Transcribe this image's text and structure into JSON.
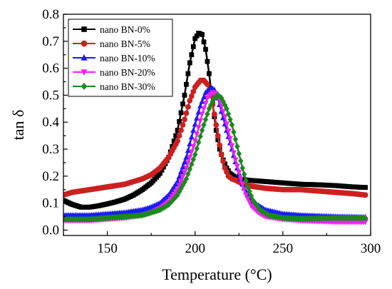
{
  "chart_data": {
    "type": "line",
    "xlabel": "Temperature (°C)",
    "ylabel": "tan δ",
    "xlim": [
      125,
      300
    ],
    "ylim": [
      -0.02,
      0.8
    ],
    "x_ticks": [
      150,
      200,
      250,
      300
    ],
    "x_tick_labels": [
      "150",
      "200",
      "250",
      "300"
    ],
    "y_ticks": [
      0.0,
      0.1,
      0.2,
      0.3,
      0.4,
      0.5,
      0.6,
      0.7,
      0.8
    ],
    "y_tick_labels": [
      "0.0",
      "0.1",
      "0.2",
      "0.3",
      "0.4",
      "0.5",
      "0.6",
      "0.7",
      "0.8"
    ],
    "legend_position": "top-left",
    "series": [
      {
        "name": "nano BN-0%",
        "color": "#000000",
        "marker": "square",
        "points": [
          [
            125,
            0.11
          ],
          [
            130,
            0.095
          ],
          [
            135,
            0.085
          ],
          [
            140,
            0.085
          ],
          [
            145,
            0.09
          ],
          [
            150,
            0.097
          ],
          [
            155,
            0.105
          ],
          [
            160,
            0.115
          ],
          [
            165,
            0.13
          ],
          [
            170,
            0.15
          ],
          [
            175,
            0.175
          ],
          [
            180,
            0.21
          ],
          [
            185,
            0.27
          ],
          [
            190,
            0.37
          ],
          [
            194,
            0.5
          ],
          [
            197,
            0.62
          ],
          [
            200,
            0.71
          ],
          [
            202,
            0.73
          ],
          [
            204,
            0.725
          ],
          [
            206,
            0.67
          ],
          [
            208,
            0.58
          ],
          [
            210,
            0.47
          ],
          [
            212,
            0.37
          ],
          [
            214,
            0.3
          ],
          [
            216,
            0.26
          ],
          [
            218,
            0.23
          ],
          [
            220,
            0.21
          ],
          [
            222,
            0.2
          ],
          [
            225,
            0.19
          ],
          [
            230,
            0.185
          ],
          [
            240,
            0.18
          ],
          [
            250,
            0.175
          ],
          [
            260,
            0.17
          ],
          [
            270,
            0.168
          ],
          [
            280,
            0.165
          ],
          [
            290,
            0.16
          ],
          [
            297,
            0.158
          ]
        ]
      },
      {
        "name": "nano BN-5%",
        "color": "#cc2020",
        "marker": "circle",
        "points": [
          [
            125,
            0.13
          ],
          [
            130,
            0.14
          ],
          [
            140,
            0.15
          ],
          [
            150,
            0.16
          ],
          [
            160,
            0.17
          ],
          [
            170,
            0.19
          ],
          [
            175,
            0.205
          ],
          [
            180,
            0.23
          ],
          [
            185,
            0.27
          ],
          [
            190,
            0.33
          ],
          [
            194,
            0.41
          ],
          [
            197,
            0.48
          ],
          [
            200,
            0.53
          ],
          [
            203,
            0.555
          ],
          [
            205,
            0.555
          ],
          [
            207,
            0.54
          ],
          [
            209,
            0.5
          ],
          [
            211,
            0.43
          ],
          [
            213,
            0.35
          ],
          [
            215,
            0.28
          ],
          [
            217,
            0.23
          ],
          [
            219,
            0.2
          ],
          [
            221,
            0.19
          ],
          [
            223,
            0.185
          ],
          [
            226,
            0.175
          ],
          [
            230,
            0.165
          ],
          [
            240,
            0.155
          ],
          [
            250,
            0.15
          ],
          [
            260,
            0.15
          ],
          [
            270,
            0.145
          ],
          [
            280,
            0.14
          ],
          [
            290,
            0.135
          ],
          [
            297,
            0.13
          ]
        ]
      },
      {
        "name": "nano BN-10%",
        "color": "#1a1aff",
        "marker": "triangle-up",
        "points": [
          [
            125,
            0.055
          ],
          [
            140,
            0.055
          ],
          [
            150,
            0.06
          ],
          [
            160,
            0.065
          ],
          [
            170,
            0.075
          ],
          [
            175,
            0.085
          ],
          [
            180,
            0.1
          ],
          [
            185,
            0.13
          ],
          [
            190,
            0.18
          ],
          [
            195,
            0.27
          ],
          [
            199,
            0.37
          ],
          [
            203,
            0.46
          ],
          [
            206,
            0.51
          ],
          [
            209,
            0.525
          ],
          [
            211,
            0.52
          ],
          [
            213,
            0.49
          ],
          [
            215,
            0.44
          ],
          [
            218,
            0.37
          ],
          [
            221,
            0.3
          ],
          [
            224,
            0.23
          ],
          [
            227,
            0.17
          ],
          [
            230,
            0.13
          ],
          [
            234,
            0.1
          ],
          [
            240,
            0.075
          ],
          [
            250,
            0.06
          ],
          [
            260,
            0.055
          ],
          [
            280,
            0.05
          ],
          [
            297,
            0.048
          ]
        ]
      },
      {
        "name": "nano BN-20%",
        "color": "#ee22ee",
        "marker": "triangle-down",
        "points": [
          [
            125,
            0.035
          ],
          [
            140,
            0.035
          ],
          [
            150,
            0.04
          ],
          [
            160,
            0.045
          ],
          [
            170,
            0.055
          ],
          [
            175,
            0.065
          ],
          [
            180,
            0.08
          ],
          [
            185,
            0.105
          ],
          [
            190,
            0.15
          ],
          [
            195,
            0.23
          ],
          [
            200,
            0.33
          ],
          [
            204,
            0.43
          ],
          [
            207,
            0.49
          ],
          [
            210,
            0.51
          ],
          [
            212,
            0.505
          ],
          [
            214,
            0.48
          ],
          [
            217,
            0.42
          ],
          [
            220,
            0.34
          ],
          [
            223,
            0.26
          ],
          [
            226,
            0.19
          ],
          [
            229,
            0.13
          ],
          [
            232,
            0.09
          ],
          [
            236,
            0.065
          ],
          [
            240,
            0.05
          ],
          [
            250,
            0.04
          ],
          [
            260,
            0.035
          ],
          [
            280,
            0.03
          ],
          [
            297,
            0.03
          ]
        ]
      },
      {
        "name": "nano BN-30%",
        "color": "#1a8a1a",
        "marker": "diamond",
        "points": [
          [
            125,
            0.04
          ],
          [
            140,
            0.04
          ],
          [
            150,
            0.045
          ],
          [
            160,
            0.05
          ],
          [
            170,
            0.055
          ],
          [
            175,
            0.065
          ],
          [
            180,
            0.075
          ],
          [
            185,
            0.095
          ],
          [
            190,
            0.13
          ],
          [
            195,
            0.19
          ],
          [
            200,
            0.28
          ],
          [
            204,
            0.37
          ],
          [
            208,
            0.45
          ],
          [
            211,
            0.49
          ],
          [
            213,
            0.5
          ],
          [
            215,
            0.49
          ],
          [
            218,
            0.45
          ],
          [
            221,
            0.39
          ],
          [
            224,
            0.31
          ],
          [
            227,
            0.23
          ],
          [
            230,
            0.16
          ],
          [
            233,
            0.11
          ],
          [
            237,
            0.075
          ],
          [
            242,
            0.055
          ],
          [
            250,
            0.045
          ],
          [
            260,
            0.042
          ],
          [
            280,
            0.045
          ],
          [
            297,
            0.045
          ]
        ]
      }
    ]
  }
}
